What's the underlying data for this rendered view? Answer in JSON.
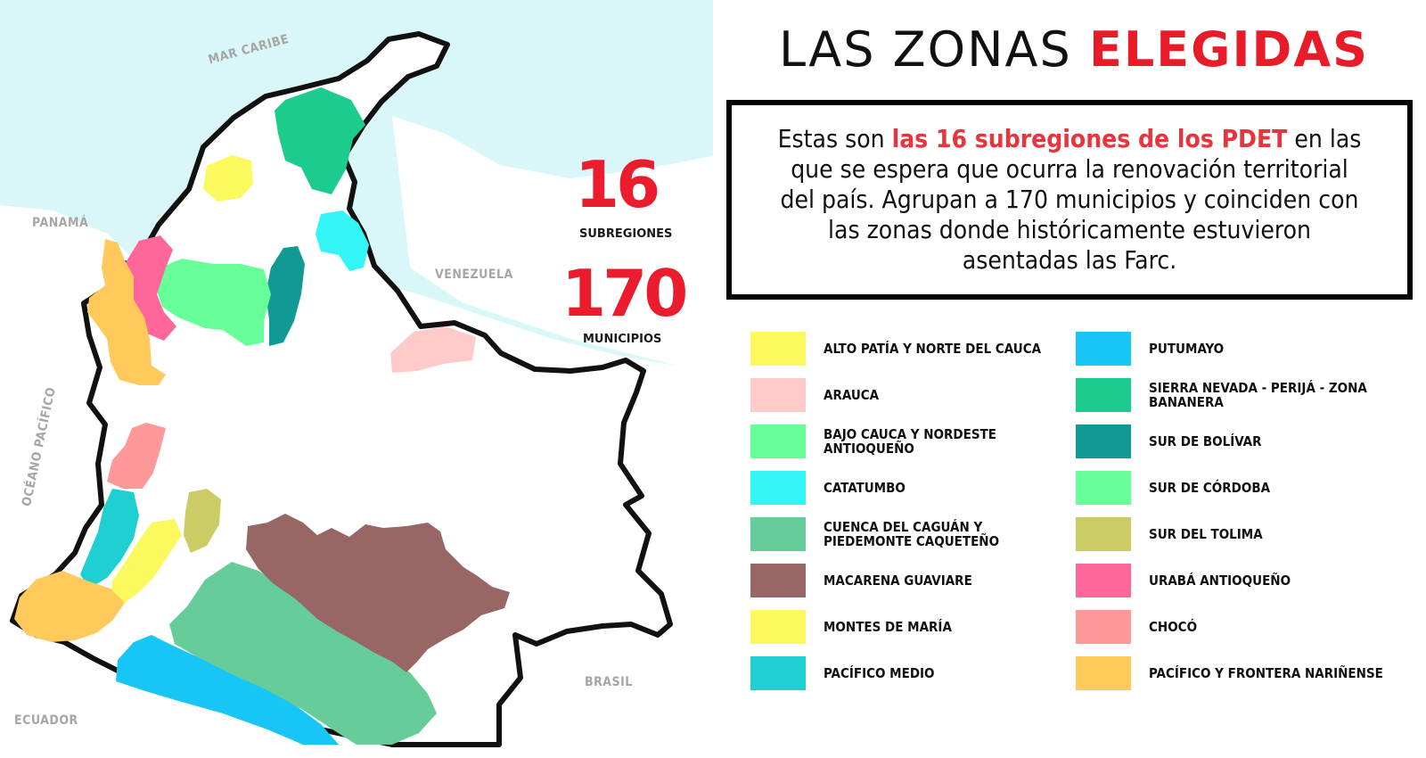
{
  "title": {
    "prefix": "LAS ZONAS",
    "highlight": "ELEGIDAS"
  },
  "map": {
    "labels": {
      "caribbean": "MAR CARIBE",
      "panama": "PANAMÁ",
      "venezuela": "VENEZUELA",
      "pacific": "OCÉANO PACÍFICO",
      "brasil": "BRASIL",
      "ecuador": "ECUADOR"
    },
    "colors": {
      "sea": "#d9f7f8",
      "land": "#ffffff",
      "border": "#111111"
    }
  },
  "stats": {
    "subregions": {
      "value": "16",
      "caption": "SUBREGIONES"
    },
    "municipalities": {
      "value": "170",
      "caption": "MUNICIPIOS"
    }
  },
  "info": {
    "before": "Estas son ",
    "highlight": "las 16 subregiones de los PDET",
    "after": " en las que se espera que ocurra la renovación territorial del país. Agrupan a 170 municipios y coinciden con las zonas donde históricamente estuvieron asentadas las Farc."
  },
  "legend": {
    "left": [
      {
        "label": "ALTO PATÍA Y NORTE DEL CAUCA",
        "color": "#fbf95e"
      },
      {
        "label": "ARAUCA",
        "color": "#ffcaca"
      },
      {
        "label": "BAJO CAUCA Y NORDESTE ANTIOQUEÑO",
        "color": "#66ff99"
      },
      {
        "label": "CATATUMBO",
        "color": "#33f5f5"
      },
      {
        "label": "CUENCA DEL CAGUÁN Y PIEDEMONTE CAQUETEÑO",
        "color": "#66cc99"
      },
      {
        "label": "MACARENA GUAVIARE",
        "color": "#996666"
      },
      {
        "label": "MONTES DE MARÍA",
        "color": "#fbf95e"
      },
      {
        "label": "PACÍFICO MEDIO",
        "color": "#1fcfd1"
      }
    ],
    "right": [
      {
        "label": "PUTUMAYO",
        "color": "#18c6f5"
      },
      {
        "label": "SIERRA NEVADA - PERIJÁ - ZONA BANANERA",
        "color": "#1bcc8d"
      },
      {
        "label": "SUR DE BOLÍVAR",
        "color": "#119994"
      },
      {
        "label": "SUR DE CÓRDOBA",
        "color": "#66ff99"
      },
      {
        "label": "SUR DEL TOLIMA",
        "color": "#cccc66"
      },
      {
        "label": "URABÁ ANTIOQUEÑO",
        "color": "#ff6699"
      },
      {
        "label": "CHOCÓ",
        "color": "#ff9999"
      },
      {
        "label": "PACÍFICO Y FRONTERA NARIÑENSE",
        "color": "#ffc95c"
      }
    ]
  }
}
